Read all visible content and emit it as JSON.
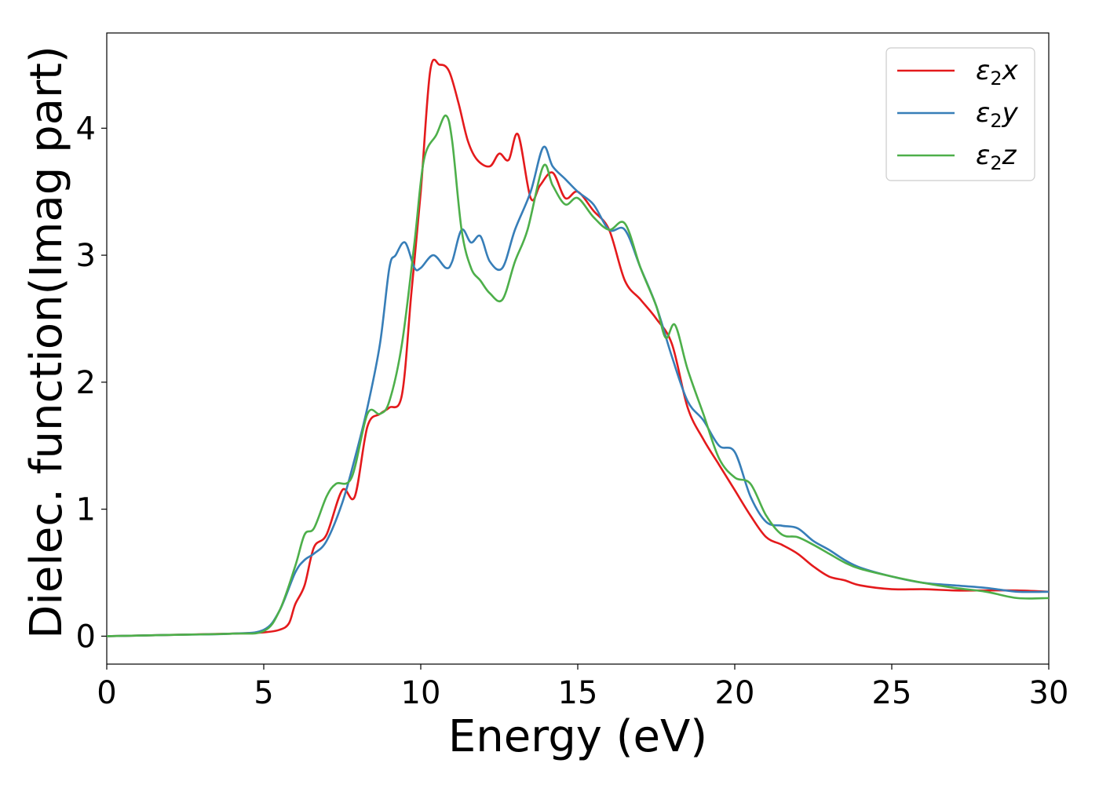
{
  "chart_data": {
    "type": "line",
    "xlabel": "Energy (eV)",
    "ylabel": "Dielec. function(Imag part)",
    "xlim": [
      0,
      30
    ],
    "ylim": [
      -0.22,
      4.75
    ],
    "xticks": [
      0,
      5,
      10,
      15,
      20,
      25,
      30
    ],
    "yticks": [
      0,
      1,
      2,
      3,
      4
    ],
    "grid": false,
    "legend_position": "top-right",
    "series": [
      {
        "name": "ε₂x",
        "legend": {
          "base": "ε",
          "sub": "2",
          "var": "x"
        },
        "color": "#e41a1c",
        "x": [
          0,
          2,
          4,
          5,
          5.5,
          5.8,
          6.0,
          6.3,
          6.6,
          7.0,
          7.5,
          7.9,
          8.3,
          8.7,
          9.0,
          9.4,
          9.7,
          10.0,
          10.3,
          10.6,
          10.9,
          11.2,
          11.5,
          11.8,
          12.2,
          12.5,
          12.8,
          13.1,
          13.5,
          13.8,
          14.2,
          14.6,
          15.0,
          15.5,
          16.0,
          16.5,
          17.0,
          17.5,
          18.0,
          18.5,
          19.0,
          19.5,
          20.0,
          20.5,
          21.0,
          21.5,
          22.0,
          22.5,
          23.0,
          23.5,
          24.0,
          25.0,
          26.0,
          27.0,
          28.0,
          29.0,
          30.0
        ],
        "y": [
          0.0,
          0.01,
          0.02,
          0.03,
          0.05,
          0.1,
          0.25,
          0.4,
          0.7,
          0.8,
          1.15,
          1.1,
          1.65,
          1.75,
          1.8,
          1.9,
          2.7,
          3.5,
          4.45,
          4.5,
          4.45,
          4.2,
          3.9,
          3.75,
          3.7,
          3.8,
          3.75,
          3.95,
          3.45,
          3.55,
          3.65,
          3.45,
          3.5,
          3.35,
          3.2,
          2.8,
          2.65,
          2.5,
          2.3,
          1.8,
          1.55,
          1.35,
          1.15,
          0.95,
          0.78,
          0.72,
          0.65,
          0.55,
          0.47,
          0.44,
          0.4,
          0.37,
          0.37,
          0.36,
          0.36,
          0.36,
          0.35
        ]
      },
      {
        "name": "ε₂y",
        "legend": {
          "base": "ε",
          "sub": "2",
          "var": "y"
        },
        "color": "#377eb8",
        "x": [
          0,
          2,
          4,
          5,
          5.5,
          6.0,
          6.3,
          6.6,
          7.0,
          7.5,
          7.9,
          8.3,
          8.7,
          9.0,
          9.2,
          9.5,
          9.8,
          10.0,
          10.4,
          10.8,
          11.0,
          11.3,
          11.6,
          11.9,
          12.2,
          12.6,
          13.0,
          13.5,
          13.9,
          14.2,
          14.6,
          15.0,
          15.5,
          16.0,
          16.5,
          17.0,
          17.5,
          18.0,
          18.5,
          19.0,
          19.5,
          20.0,
          20.5,
          21.0,
          21.5,
          22.0,
          22.5,
          23.0,
          23.5,
          24.0,
          25.0,
          26.0,
          27.0,
          28.0,
          29.0,
          30.0
        ],
        "y": [
          0.0,
          0.01,
          0.02,
          0.05,
          0.2,
          0.5,
          0.6,
          0.65,
          0.75,
          1.05,
          1.4,
          1.8,
          2.3,
          2.9,
          3.0,
          3.1,
          2.9,
          2.9,
          3.0,
          2.9,
          2.95,
          3.2,
          3.1,
          3.15,
          2.95,
          2.9,
          3.2,
          3.5,
          3.85,
          3.7,
          3.6,
          3.5,
          3.4,
          3.2,
          3.2,
          2.9,
          2.6,
          2.2,
          1.85,
          1.7,
          1.5,
          1.45,
          1.1,
          0.9,
          0.87,
          0.85,
          0.75,
          0.68,
          0.6,
          0.54,
          0.47,
          0.42,
          0.4,
          0.38,
          0.35,
          0.35
        ]
      },
      {
        "name": "ε₂z",
        "legend": {
          "base": "ε",
          "sub": "2",
          "var": "z"
        },
        "color": "#4daf4a",
        "x": [
          0,
          2,
          4,
          5,
          5.5,
          6.0,
          6.3,
          6.6,
          7.0,
          7.3,
          7.8,
          8.3,
          8.7,
          9.0,
          9.4,
          9.8,
          10.1,
          10.5,
          10.8,
          11.0,
          11.3,
          11.6,
          11.9,
          12.2,
          12.6,
          13.0,
          13.4,
          13.9,
          14.2,
          14.6,
          15.0,
          15.5,
          16.0,
          16.5,
          17.0,
          17.5,
          17.8,
          18.1,
          18.5,
          19.0,
          19.5,
          20.0,
          20.5,
          21.0,
          21.5,
          22.0,
          22.5,
          23.0,
          23.5,
          24.0,
          25.0,
          26.0,
          27.0,
          28.0,
          29.0,
          30.0
        ],
        "y": [
          0.0,
          0.01,
          0.02,
          0.04,
          0.2,
          0.55,
          0.8,
          0.85,
          1.1,
          1.2,
          1.25,
          1.75,
          1.75,
          1.85,
          2.3,
          3.1,
          3.75,
          3.95,
          4.1,
          3.9,
          3.2,
          2.9,
          2.8,
          2.7,
          2.65,
          2.95,
          3.2,
          3.7,
          3.55,
          3.4,
          3.45,
          3.3,
          3.2,
          3.25,
          2.9,
          2.6,
          2.35,
          2.45,
          2.1,
          1.75,
          1.4,
          1.25,
          1.2,
          0.95,
          0.8,
          0.78,
          0.72,
          0.65,
          0.58,
          0.53,
          0.47,
          0.42,
          0.38,
          0.35,
          0.3,
          0.3
        ]
      }
    ]
  }
}
